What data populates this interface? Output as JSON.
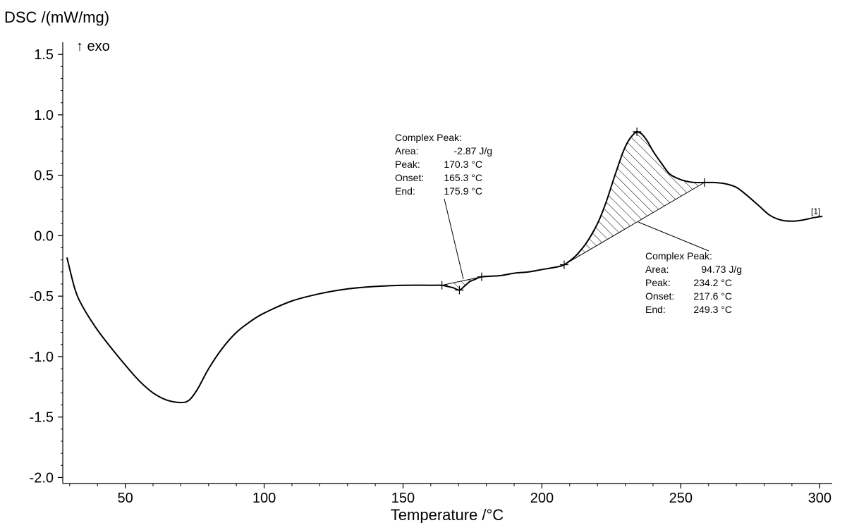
{
  "chart_data": {
    "type": "line",
    "ylabel": "DSC /(mW/mg)",
    "xlabel": "Temperature /°C",
    "direction_label": "↑ exo",
    "xlim": [
      27.5,
      304.5
    ],
    "ylim": [
      -2.05,
      1.6
    ],
    "x_ticks": [
      50,
      100,
      150,
      200,
      250,
      300
    ],
    "x_tick_labels": [
      "50",
      "100",
      "150",
      "200",
      "250",
      "300"
    ],
    "y_ticks": [
      1.5,
      1.0,
      0.5,
      0.0,
      -0.5,
      -1.0,
      -1.5,
      -2.0
    ],
    "y_tick_labels": [
      "1.5",
      "1.0",
      "0.5",
      "0.0",
      "-0.5",
      "-1.0",
      "-1.5",
      "-2.0"
    ],
    "grid": false,
    "series": [
      {
        "label": "[1]",
        "color": "#000000",
        "x": [
          29,
          32,
          35,
          40,
          45,
          50,
          55,
          60,
          65,
          70,
          73,
          76,
          80,
          85,
          90,
          95,
          100,
          110,
          120,
          130,
          140,
          150,
          160,
          164,
          166,
          168,
          170.3,
          172,
          174,
          176,
          178.3,
          185,
          190,
          195,
          200,
          205,
          208,
          212,
          216,
          220,
          223,
          226,
          229,
          231,
          233,
          234.2,
          236,
          238,
          240,
          243,
          246,
          249.3,
          252,
          255,
          258.5,
          262,
          266,
          270,
          274,
          278,
          282,
          286,
          290,
          294,
          298,
          301
        ],
        "y": [
          -0.18,
          -0.45,
          -0.6,
          -0.78,
          -0.93,
          -1.07,
          -1.2,
          -1.3,
          -1.36,
          -1.38,
          -1.36,
          -1.27,
          -1.1,
          -0.93,
          -0.8,
          -0.71,
          -0.64,
          -0.54,
          -0.48,
          -0.44,
          -0.42,
          -0.41,
          -0.41,
          -0.41,
          -0.42,
          -0.43,
          -0.45,
          -0.42,
          -0.38,
          -0.36,
          -0.34,
          -0.33,
          -0.31,
          -0.3,
          -0.28,
          -0.26,
          -0.24,
          -0.17,
          -0.06,
          0.1,
          0.27,
          0.48,
          0.68,
          0.78,
          0.84,
          0.86,
          0.84,
          0.78,
          0.7,
          0.6,
          0.51,
          0.47,
          0.45,
          0.44,
          0.44,
          0.44,
          0.43,
          0.4,
          0.33,
          0.25,
          0.17,
          0.13,
          0.12,
          0.13,
          0.15,
          0.16
        ]
      }
    ],
    "peaks": [
      {
        "title": "Complex Peak:",
        "rows": [
          {
            "key": "Area:",
            "value": "-2.87 J/g"
          },
          {
            "key": "Peak:",
            "value": "170.3 °C"
          },
          {
            "key": "Onset:",
            "value": "165.3 °C"
          },
          {
            "key": "End:",
            "value": "175.9 °C"
          }
        ],
        "markers": [
          [
            164,
            -0.41
          ],
          [
            170.3,
            -0.45
          ],
          [
            178.3,
            -0.34
          ]
        ]
      },
      {
        "title": "Complex Peak:",
        "rows": [
          {
            "key": "Area:",
            "value": "94.73 J/g"
          },
          {
            "key": "Peak:",
            "value": "234.2 °C"
          },
          {
            "key": "Onset:",
            "value": "217.6 °C"
          },
          {
            "key": "End:",
            "value": "249.3 °C"
          }
        ],
        "markers": [
          [
            208,
            -0.24
          ],
          [
            234.2,
            0.86
          ],
          [
            258.5,
            0.44
          ]
        ]
      }
    ]
  }
}
